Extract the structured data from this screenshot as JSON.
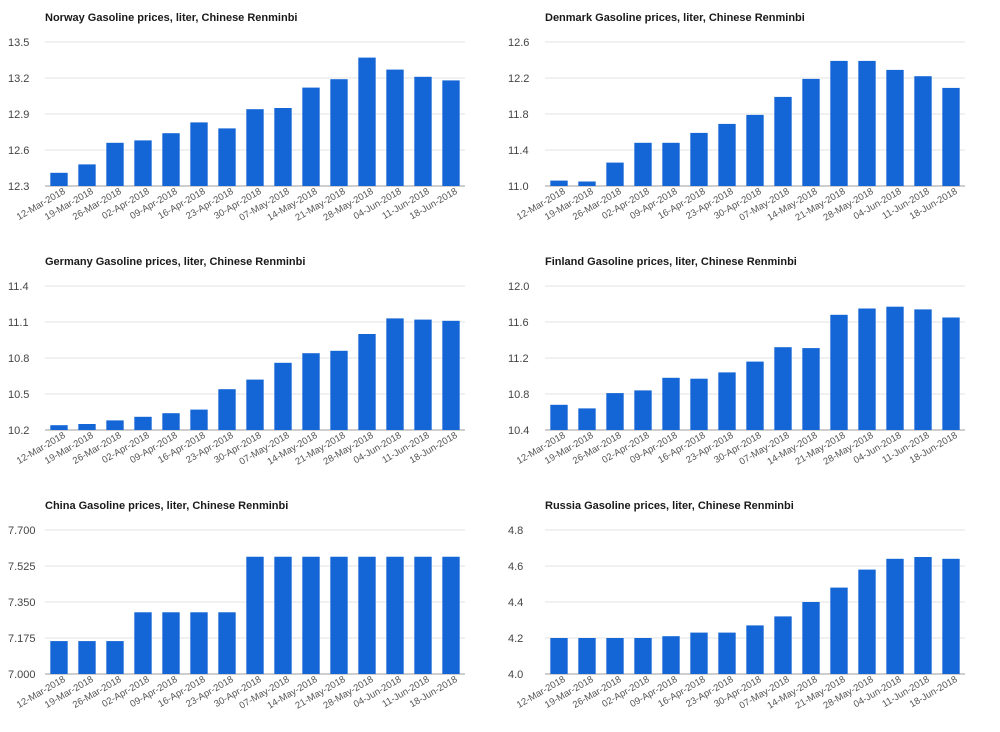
{
  "colors": {
    "bar": "#1465d6",
    "grid": "#e3e3e3"
  },
  "chart_data": [
    {
      "type": "bar",
      "title": "Norway Gasoline prices, liter, Chinese Renminbi",
      "xlabel": "",
      "ylabel": "",
      "categories": [
        "12-Mar-2018",
        "19-Mar-2018",
        "26-Mar-2018",
        "02-Apr-2018",
        "09-Apr-2018",
        "16-Apr-2018",
        "23-Apr-2018",
        "30-Apr-2018",
        "07-May-2018",
        "14-May-2018",
        "21-May-2018",
        "28-May-2018",
        "04-Jun-2018",
        "11-Jun-2018",
        "18-Jun-2018"
      ],
      "values": [
        12.41,
        12.48,
        12.66,
        12.68,
        12.74,
        12.83,
        12.78,
        12.94,
        12.95,
        13.12,
        13.19,
        13.37,
        13.27,
        13.21,
        13.18
      ],
      "ylim": [
        12.3,
        13.5
      ],
      "yticks": [
        "12.3",
        "12.6",
        "12.9",
        "13.2",
        "13.5"
      ]
    },
    {
      "type": "bar",
      "title": "Denmark Gasoline prices, liter, Chinese Renminbi",
      "xlabel": "",
      "ylabel": "",
      "categories": [
        "12-Mar-2018",
        "19-Mar-2018",
        "26-Mar-2018",
        "02-Apr-2018",
        "09-Apr-2018",
        "16-Apr-2018",
        "23-Apr-2018",
        "30-Apr-2018",
        "07-May-2018",
        "14-May-2018",
        "21-May-2018",
        "28-May-2018",
        "04-Jun-2018",
        "11-Jun-2018",
        "18-Jun-2018"
      ],
      "values": [
        11.06,
        11.05,
        11.26,
        11.48,
        11.48,
        11.59,
        11.69,
        11.79,
        11.99,
        12.19,
        12.39,
        12.39,
        12.29,
        12.22,
        12.09
      ],
      "ylim": [
        11.0,
        12.6
      ],
      "yticks": [
        "11.0",
        "11.4",
        "11.8",
        "12.2",
        "12.6"
      ]
    },
    {
      "type": "bar",
      "title": "Germany Gasoline prices, liter, Chinese Renminbi",
      "xlabel": "",
      "ylabel": "",
      "categories": [
        "12-Mar-2018",
        "19-Mar-2018",
        "26-Mar-2018",
        "02-Apr-2018",
        "09-Apr-2018",
        "16-Apr-2018",
        "23-Apr-2018",
        "30-Apr-2018",
        "07-May-2018",
        "14-May-2018",
        "21-May-2018",
        "28-May-2018",
        "04-Jun-2018",
        "11-Jun-2018",
        "18-Jun-2018"
      ],
      "values": [
        10.24,
        10.25,
        10.28,
        10.31,
        10.34,
        10.37,
        10.54,
        10.62,
        10.76,
        10.84,
        10.86,
        11.0,
        11.13,
        11.12,
        11.11
      ],
      "ylim": [
        10.2,
        11.4
      ],
      "yticks": [
        "10.2",
        "10.5",
        "10.8",
        "11.1",
        "11.4"
      ]
    },
    {
      "type": "bar",
      "title": "Finland Gasoline prices, liter, Chinese Renminbi",
      "xlabel": "",
      "ylabel": "",
      "categories": [
        "12-Mar-2018",
        "19-Mar-2018",
        "26-Mar-2018",
        "02-Apr-2018",
        "09-Apr-2018",
        "16-Apr-2018",
        "23-Apr-2018",
        "30-Apr-2018",
        "07-May-2018",
        "14-May-2018",
        "21-May-2018",
        "28-May-2018",
        "04-Jun-2018",
        "11-Jun-2018",
        "18-Jun-2018"
      ],
      "values": [
        10.68,
        10.64,
        10.81,
        10.84,
        10.98,
        10.97,
        11.04,
        11.16,
        11.32,
        11.31,
        11.68,
        11.75,
        11.77,
        11.74,
        11.65
      ],
      "ylim": [
        10.4,
        12.0
      ],
      "yticks": [
        "10.4",
        "10.8",
        "11.2",
        "11.6",
        "12.0"
      ]
    },
    {
      "type": "bar",
      "title": "China Gasoline prices, liter, Chinese Renminbi",
      "xlabel": "",
      "ylabel": "",
      "categories": [
        "12-Mar-2018",
        "19-Mar-2018",
        "26-Mar-2018",
        "02-Apr-2018",
        "09-Apr-2018",
        "16-Apr-2018",
        "23-Apr-2018",
        "30-Apr-2018",
        "07-May-2018",
        "14-May-2018",
        "21-May-2018",
        "28-May-2018",
        "04-Jun-2018",
        "11-Jun-2018",
        "18-Jun-2018"
      ],
      "values": [
        7.16,
        7.16,
        7.16,
        7.3,
        7.3,
        7.3,
        7.3,
        7.57,
        7.57,
        7.57,
        7.57,
        7.57,
        7.57,
        7.57,
        7.57
      ],
      "ylim": [
        7.0,
        7.7
      ],
      "yticks": [
        "7.000",
        "7.175",
        "7.350",
        "7.525",
        "7.700"
      ]
    },
    {
      "type": "bar",
      "title": "Russia Gasoline prices, liter, Chinese Renminbi",
      "xlabel": "",
      "ylabel": "",
      "categories": [
        "12-Mar-2018",
        "19-Mar-2018",
        "26-Mar-2018",
        "02-Apr-2018",
        "09-Apr-2018",
        "16-Apr-2018",
        "23-Apr-2018",
        "30-Apr-2018",
        "07-May-2018",
        "14-May-2018",
        "21-May-2018",
        "28-May-2018",
        "04-Jun-2018",
        "11-Jun-2018",
        "18-Jun-2018"
      ],
      "values": [
        4.2,
        4.2,
        4.2,
        4.2,
        4.21,
        4.23,
        4.23,
        4.27,
        4.32,
        4.4,
        4.48,
        4.58,
        4.64,
        4.65,
        4.64
      ],
      "ylim": [
        4.0,
        4.8
      ],
      "yticks": [
        "4.0",
        "4.2",
        "4.4",
        "4.6",
        "4.8"
      ]
    }
  ]
}
